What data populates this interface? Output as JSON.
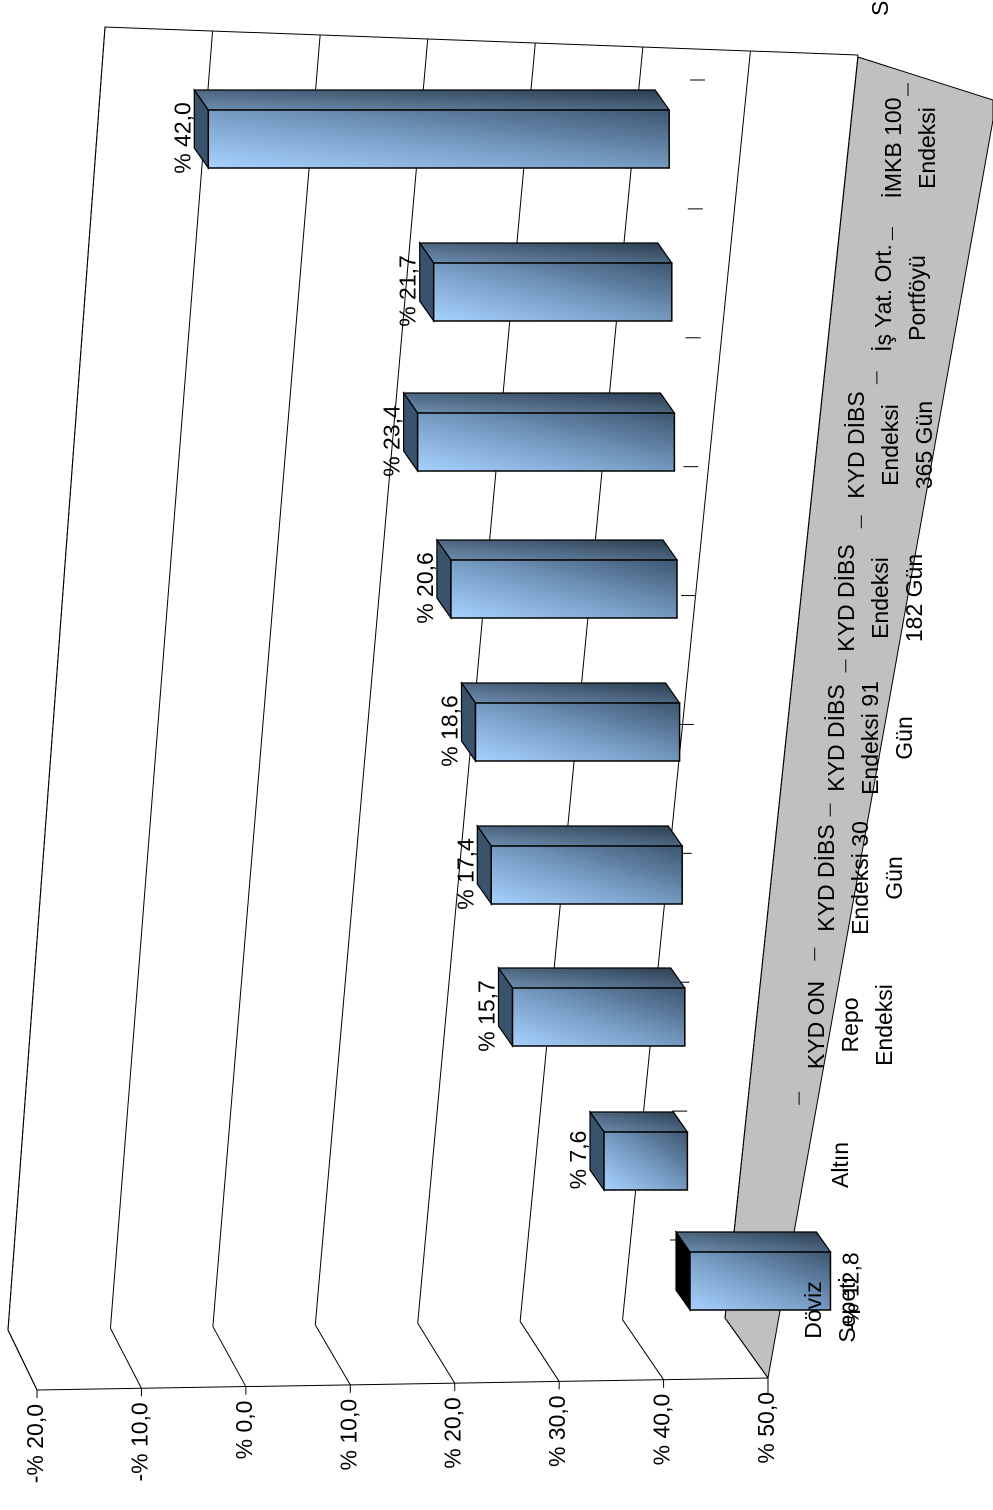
{
  "chart_data": {
    "type": "bar",
    "orientation": "vertical-3d, figure rotated 90 degrees counter-clockwise",
    "categories": [
      [
        "Döviz",
        "Sepeti"
      ],
      [
        "Altın"
      ],
      [
        "KYD ON",
        "Repo",
        "Endeksi"
      ],
      [
        "KYD DİBS",
        "Endeksi 30",
        "Gün"
      ],
      [
        "KYD DİBS",
        "Endeksi 91",
        "Gün"
      ],
      [
        "KYD DİBS",
        "Endeksi",
        "182 Gün"
      ],
      [
        "KYD DİBS",
        "Endeksi",
        "365 Gün"
      ],
      [
        "İş Yat. Ort.",
        "Portföyü"
      ],
      [
        "İMKB 100",
        "Endeksi"
      ]
    ],
    "values": [
      -12.8,
      7.6,
      15.7,
      17.4,
      18.6,
      20.6,
      23.4,
      21.7,
      42.0
    ],
    "data_labels": [
      "-% 12,8",
      "% 7,6",
      "% 15,7",
      "% 17,4",
      "% 18,6",
      "% 20,6",
      "% 23,4",
      "% 21,7",
      "% 42,0"
    ],
    "ylim": [
      -20,
      50
    ],
    "yticks": [
      -20,
      -10,
      0,
      10,
      20,
      30,
      40,
      50
    ],
    "ytick_labels": [
      "-% 20,0",
      "-% 10,0",
      "% 0,0",
      "% 10,0",
      "% 20,0",
      "% 30,0",
      "% 40,0",
      "% 50,0"
    ],
    "corner_label": "S",
    "grid": true,
    "colors": {
      "bar_front_light": "#a7d1ff",
      "bar_front_dark": "#3d5670",
      "bar_top": "#4a6682",
      "bar_side": "#3a536c",
      "floor": "#c0c0c0",
      "grid_line": "#000000"
    }
  }
}
